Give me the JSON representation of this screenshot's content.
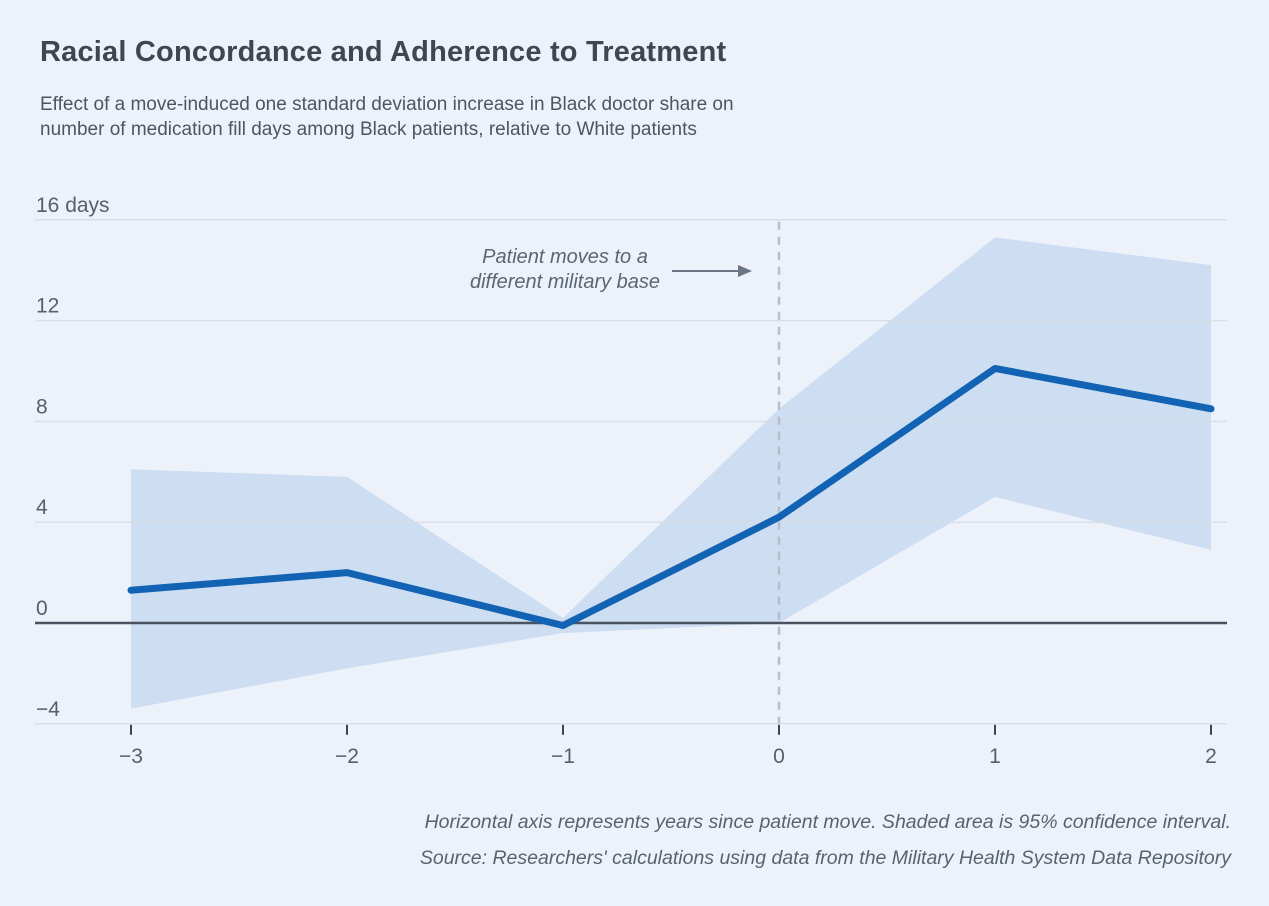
{
  "header": {
    "title": "Racial Concordance and Adherence to Treatment",
    "subtitle_line1": "Effect of a move-induced one standard deviation increase in Black doctor share on",
    "subtitle_line2": "number of medication fill days among Black patients, relative to White patients"
  },
  "annotation": {
    "line1": "Patient moves to a",
    "line2": "different military base",
    "arrow_icon": "right-arrow"
  },
  "footer": {
    "note": "Horizontal axis represents years since patient move. Shaded area is 95% confidence interval.",
    "source": "Source: Researchers' calculations using data from the Military Health System Data Repository"
  },
  "chart_data": {
    "type": "line",
    "title": "Racial Concordance and Adherence to Treatment",
    "xlabel": "Years since patient move",
    "ylabel": "days",
    "x": [
      -3,
      -2,
      -1,
      0,
      1,
      2
    ],
    "series": [
      {
        "name": "Effect on medication fill days",
        "values": [
          1.3,
          2.0,
          -0.1,
          4.2,
          10.1,
          8.5
        ]
      },
      {
        "name": "95% CI upper bound",
        "values": [
          6.1,
          5.8,
          0.2,
          8.5,
          15.3,
          14.2
        ]
      },
      {
        "name": "95% CI lower bound",
        "values": [
          -3.4,
          -1.8,
          -0.4,
          0.0,
          5.0,
          2.9
        ]
      }
    ],
    "ylim": [
      -4,
      16
    ],
    "ytick_values": [
      16,
      12,
      8,
      4,
      0,
      -4
    ],
    "ytick_labels": [
      "16 days",
      "12",
      "8",
      "4",
      "0",
      "−4"
    ],
    "xtick_labels": [
      "−3",
      "−2",
      "−1",
      "0",
      "1",
      "2"
    ],
    "event_line_x": 0,
    "grid": true,
    "legend_position": "none",
    "colors": {
      "line": "#1263b4",
      "band": "#cdddf2",
      "background": "#edf2fa",
      "gridline": "#d9dee6",
      "zero_line": "#4a5260",
      "dashed_line": "#b6bec9",
      "tick": "#3c444e",
      "axis_label": "#555f6a"
    }
  }
}
